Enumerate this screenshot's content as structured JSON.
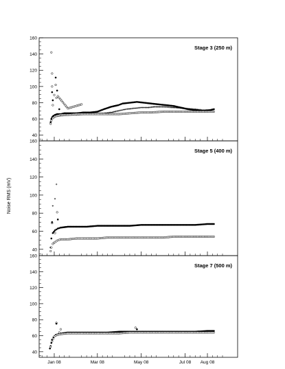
{
  "figure": {
    "ylabel": "Noise RMS (mV)",
    "x_tick_labels": [
      "Jan 08",
      "Mar 08",
      "May 08",
      "Jul 08",
      "Aug 08"
    ]
  },
  "chart_data": [
    {
      "type": "scatter",
      "title": "Stage 3 (250 m)",
      "xlabel": "",
      "ylabel": "Noise RMS (mV)",
      "x_unit": "date",
      "xlim": [
        "2007-12-11",
        "2008-09-12"
      ],
      "ylim": [
        33,
        160
      ],
      "y_ticks": [
        40,
        60,
        80,
        100,
        120,
        140,
        160
      ],
      "x_ticks": [
        "2008-01-01",
        "2008-03-01",
        "2008-05-01",
        "2008-07-01",
        "2008-08-01"
      ],
      "x_tick_labels": [
        "Jan 08",
        "Mar 08",
        "May 08",
        "Jul 08",
        "Aug 08"
      ],
      "grid": false,
      "series": [
        {
          "marker": "filled",
          "x": [
            "2007-12-27",
            "2007-12-28",
            "2007-12-29",
            "2007-12-30",
            "2007-12-31",
            "2008-01-02",
            "2008-01-05",
            "2008-01-10",
            "2008-01-15",
            "2008-01-20",
            "2008-01-25",
            "2008-02-01",
            "2008-02-10",
            "2008-02-20",
            "2008-03-01",
            "2008-03-10",
            "2008-03-20",
            "2008-03-30",
            "2008-04-05",
            "2008-04-15",
            "2008-04-25",
            "2008-05-05",
            "2008-05-15",
            "2008-05-25",
            "2008-06-05",
            "2008-06-15",
            "2008-06-25",
            "2008-07-05",
            "2008-07-15",
            "2008-07-25",
            "2008-08-05",
            "2008-08-10"
          ],
          "y": [
            56,
            60,
            62,
            63,
            64,
            65,
            66,
            66,
            67,
            67,
            67,
            67,
            68,
            68,
            69,
            72,
            75,
            77,
            79,
            80,
            81,
            80,
            79,
            78,
            77,
            76,
            74,
            72,
            71,
            70,
            71,
            72
          ]
        },
        {
          "marker": "cross",
          "x": [
            "2007-12-28",
            "2007-12-30",
            "2008-01-02",
            "2008-01-10",
            "2008-01-20",
            "2008-02-01",
            "2008-02-15",
            "2008-03-01",
            "2008-03-10",
            "2008-03-20",
            "2008-03-30",
            "2008-04-10",
            "2008-04-20",
            "2008-05-01",
            "2008-05-10",
            "2008-05-20",
            "2008-06-01",
            "2008-06-15",
            "2008-07-01",
            "2008-07-15",
            "2008-07-25",
            "2008-08-05",
            "2008-08-10"
          ],
          "y": [
            58,
            61,
            63,
            64,
            65,
            65,
            66,
            67,
            67,
            68,
            70,
            72,
            73,
            74,
            74,
            75,
            75,
            74,
            73,
            72,
            71,
            71,
            72
          ]
        },
        {
          "marker": "open",
          "x": [
            "2007-12-27",
            "2007-12-28",
            "2007-12-30",
            "2008-01-02",
            "2008-01-05",
            "2008-01-10",
            "2008-01-20",
            "2008-02-01",
            "2008-02-15",
            "2008-03-01",
            "2008-03-15",
            "2008-04-01",
            "2008-04-15",
            "2008-05-01",
            "2008-05-15",
            "2008-06-01",
            "2008-06-15",
            "2008-07-01",
            "2008-07-15",
            "2008-08-01",
            "2008-08-10"
          ],
          "y": [
            54,
            58,
            61,
            63,
            64,
            65,
            65,
            66,
            66,
            66,
            66,
            66,
            67,
            68,
            68,
            69,
            69,
            69,
            69,
            69,
            69
          ]
        },
        {
          "marker": "open",
          "x": [
            "2007-12-28",
            "2007-12-29",
            "2007-12-29",
            "2007-12-30",
            "2008-01-03",
            "2008-01-04",
            "2008-01-06",
            "2008-01-20",
            "2008-02-08"
          ],
          "y": [
            142,
            116,
            100,
            77,
            102,
            86,
            88,
            73,
            78
          ]
        },
        {
          "marker": "filled",
          "x": [
            "2007-12-29",
            "2007-12-30",
            "2008-01-03",
            "2008-01-05",
            "2008-01-08"
          ],
          "y": [
            93,
            83,
            111,
            95,
            72
          ]
        }
      ]
    },
    {
      "type": "scatter",
      "title": "Stage 5 (400 m)",
      "xlabel": "",
      "ylabel": "Noise RMS (mV)",
      "x_unit": "date",
      "xlim": [
        "2007-12-11",
        "2008-09-12"
      ],
      "ylim": [
        33,
        160
      ],
      "y_ticks": [
        40,
        60,
        80,
        100,
        120,
        140,
        160
      ],
      "x_ticks": [
        "2008-01-01",
        "2008-03-01",
        "2008-05-01",
        "2008-07-01",
        "2008-08-01"
      ],
      "x_tick_labels": [
        "Jan 08",
        "Mar 08",
        "May 08",
        "Jul 08",
        "Aug 08"
      ],
      "grid": false,
      "series": [
        {
          "marker": "filled",
          "x": [
            "2007-12-27",
            "2007-12-28",
            "2007-12-30",
            "2008-01-02",
            "2008-01-06",
            "2008-01-10",
            "2008-01-20",
            "2008-02-01",
            "2008-02-15",
            "2008-03-01",
            "2008-03-15",
            "2008-04-01",
            "2008-04-15",
            "2008-05-01",
            "2008-05-15",
            "2008-06-01",
            "2008-06-15",
            "2008-07-01",
            "2008-07-15",
            "2008-08-01",
            "2008-08-10"
          ],
          "y": [
            42,
            52,
            58,
            61,
            63,
            64,
            65,
            65,
            65,
            66,
            66,
            66,
            66,
            67,
            67,
            67,
            67,
            67,
            67,
            68,
            68
          ]
        },
        {
          "marker": "open",
          "x": [
            "2007-12-27",
            "2007-12-28",
            "2007-12-30",
            "2008-01-02",
            "2008-01-06",
            "2008-01-10",
            "2008-01-20",
            "2008-02-01",
            "2008-02-15",
            "2008-03-01",
            "2008-03-15",
            "2008-04-01",
            "2008-04-15",
            "2008-05-01",
            "2008-05-15",
            "2008-06-01",
            "2008-06-15",
            "2008-07-01",
            "2008-07-15",
            "2008-08-01",
            "2008-08-10"
          ],
          "y": [
            38,
            42,
            46,
            48,
            50,
            51,
            51,
            52,
            52,
            52,
            53,
            53,
            53,
            53,
            53,
            53,
            54,
            54,
            54,
            54,
            54
          ]
        },
        {
          "marker": "cross",
          "x": [
            "2008-01-04",
            "2008-01-02",
            "2007-12-30"
          ],
          "y": [
            112,
            96,
            88
          ]
        },
        {
          "marker": "open",
          "x": [
            "2008-01-05",
            "2007-12-29",
            "2008-01-02"
          ],
          "y": [
            81,
            69,
            58
          ]
        },
        {
          "marker": "filled",
          "x": [
            "2008-01-06",
            "2007-12-29"
          ],
          "y": [
            73,
            70
          ]
        }
      ]
    },
    {
      "type": "scatter",
      "title": "Stage 7 (500 m)",
      "xlabel": "",
      "ylabel": "Noise RMS (mV)",
      "x_unit": "date",
      "xlim": [
        "2007-12-11",
        "2008-09-12"
      ],
      "ylim": [
        33,
        160
      ],
      "y_ticks": [
        40,
        60,
        80,
        100,
        120,
        140,
        160
      ],
      "x_ticks": [
        "2008-01-01",
        "2008-03-01",
        "2008-05-01",
        "2008-07-01",
        "2008-08-01"
      ],
      "x_tick_labels": [
        "Jan 08",
        "Mar 08",
        "May 08",
        "Jul 08",
        "Aug 08"
      ],
      "grid": false,
      "series": [
        {
          "marker": "filled",
          "x": [
            "2007-12-26",
            "2007-12-27",
            "2007-12-28",
            "2007-12-29",
            "2007-12-31",
            "2008-01-03",
            "2008-01-07",
            "2008-01-12",
            "2008-01-20",
            "2008-02-01",
            "2008-02-15",
            "2008-03-01",
            "2008-03-15",
            "2008-04-01",
            "2008-04-15",
            "2008-05-01",
            "2008-05-15",
            "2008-06-01",
            "2008-06-15",
            "2008-07-01",
            "2008-07-15",
            "2008-08-01",
            "2008-08-10"
          ],
          "y": [
            44,
            47,
            51,
            55,
            58,
            61,
            62,
            63,
            64,
            64,
            64,
            64,
            64,
            65,
            65,
            65,
            65,
            65,
            65,
            65,
            65,
            66,
            66
          ]
        },
        {
          "marker": "open",
          "x": [
            "2007-12-27",
            "2007-12-29",
            "2008-01-01",
            "2008-01-05",
            "2008-01-10",
            "2008-01-20",
            "2008-02-01",
            "2008-02-15",
            "2008-03-01",
            "2008-03-15",
            "2008-04-01",
            "2008-04-15",
            "2008-05-01",
            "2008-05-15",
            "2008-06-01",
            "2008-06-15",
            "2008-07-01",
            "2008-07-15",
            "2008-08-01",
            "2008-08-10"
          ],
          "y": [
            46,
            53,
            59,
            61,
            62,
            63,
            63,
            63,
            63,
            63,
            63,
            64,
            64,
            64,
            64,
            64,
            64,
            64,
            64,
            64
          ]
        },
        {
          "marker": "open",
          "x": [
            "2008-01-04",
            "2008-01-10",
            "2008-01-08",
            "2008-04-23"
          ],
          "y": [
            76,
            68,
            64,
            70
          ]
        },
        {
          "marker": "filled",
          "x": [
            "2008-01-04",
            "2008-04-25"
          ],
          "y": [
            75,
            68
          ]
        }
      ]
    }
  ]
}
